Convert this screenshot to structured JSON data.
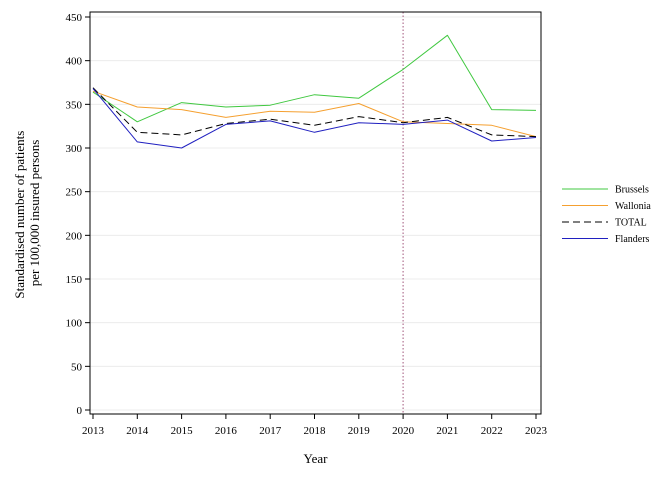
{
  "chart_data": {
    "type": "line",
    "title": "",
    "xlabel": "Year",
    "ylabel_lines": [
      "Standardised number of patients",
      "per 100,000 insured persons"
    ],
    "x": [
      2013,
      2014,
      2015,
      2016,
      2017,
      2018,
      2019,
      2020,
      2021,
      2022,
      2023
    ],
    "xlim": [
      2013,
      2023
    ],
    "ylim": [
      0,
      450
    ],
    "yticks": [
      0,
      50,
      100,
      150,
      200,
      250,
      300,
      350,
      400,
      450
    ],
    "grid": "horizontal",
    "reference_line": {
      "x": 2020,
      "style": "dotted",
      "color": "#b07090"
    },
    "legend_position": "right",
    "series": [
      {
        "name": "Brussels",
        "color": "#40c840",
        "dash": "solid",
        "values": [
          364,
          330,
          352,
          347,
          349,
          361,
          357,
          390,
          429,
          344,
          343
        ]
      },
      {
        "name": "Wallonia",
        "color": "#f5a030",
        "dash": "solid",
        "values": [
          365,
          347,
          344,
          335,
          342,
          341,
          351,
          330,
          328,
          326,
          313
        ]
      },
      {
        "name": "TOTAL",
        "color": "#000000",
        "dash": "dashed",
        "values": [
          369,
          318,
          315,
          328,
          333,
          326,
          336,
          329,
          335,
          315,
          313
        ]
      },
      {
        "name": "Flanders",
        "color": "#2020c0",
        "dash": "solid",
        "values": [
          368,
          307,
          300,
          327,
          331,
          318,
          329,
          327,
          332,
          308,
          312
        ]
      }
    ]
  }
}
